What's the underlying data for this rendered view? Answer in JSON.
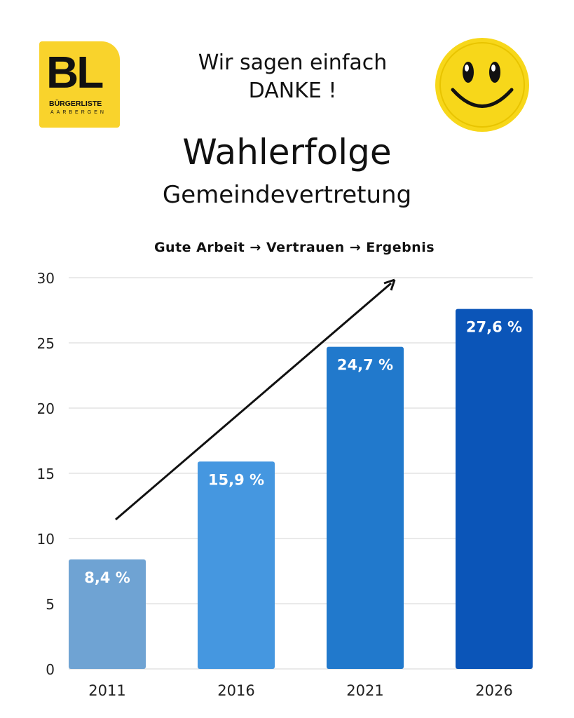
{
  "logo": {
    "initials": "BL",
    "name": "BÜRGERLISTE",
    "place": "AARBERGEN",
    "color": "#f9d32c"
  },
  "header": {
    "line1": "Wir sagen einfach",
    "line2": "DANKE !",
    "title": "Wahlerfolge",
    "subtitle": "Gemeindevertretung"
  },
  "smiley": {
    "icon": "smiley-face-icon",
    "color": "#f7d71a"
  },
  "chart_data": {
    "type": "bar",
    "title": "Gute Arbeit → Vertrauen → Ergebnis",
    "categories": [
      "2011",
      "2016",
      "2021",
      "2026"
    ],
    "values": [
      8.4,
      15.9,
      24.7,
      27.6
    ],
    "data_labels": [
      "8,4 %",
      "15,9 %",
      "24,7 %",
      "27,6 %"
    ],
    "colors": [
      "#6fa3d3",
      "#4597e0",
      "#2179cc",
      "#0b55b8"
    ],
    "yticks": [
      0,
      5,
      10,
      15,
      20,
      25,
      30
    ],
    "ylim": [
      0,
      30
    ],
    "xlabel": "",
    "ylabel": "",
    "grid": true,
    "annotation": "upward-trend-arrow"
  }
}
